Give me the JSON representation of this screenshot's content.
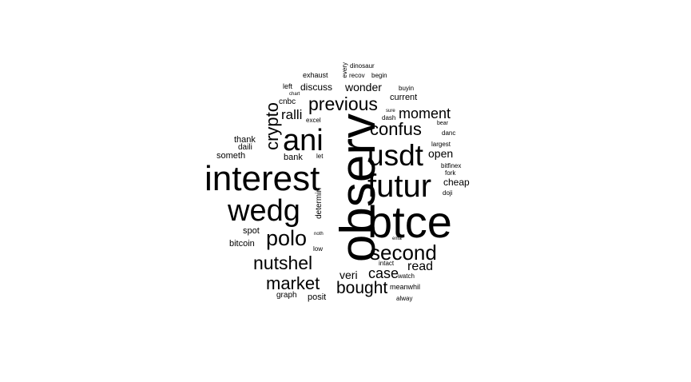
{
  "cloud": {
    "text_color": "#000000",
    "background": "#ffffff",
    "words": [
      {
        "id": "observ",
        "text": "observ"
      },
      {
        "id": "btce",
        "text": "btce"
      },
      {
        "id": "interest",
        "text": "interest"
      },
      {
        "id": "futur",
        "text": "futur"
      },
      {
        "id": "wedg",
        "text": "wedg"
      },
      {
        "id": "ani",
        "text": "ani"
      },
      {
        "id": "usdt",
        "text": "usdt"
      },
      {
        "id": "polo",
        "text": "polo"
      },
      {
        "id": "second",
        "text": "second"
      },
      {
        "id": "nutshel",
        "text": "nutshel"
      },
      {
        "id": "previous",
        "text": "previous"
      },
      {
        "id": "market",
        "text": "market"
      },
      {
        "id": "crypto",
        "text": "crypto"
      },
      {
        "id": "confus",
        "text": "confus"
      },
      {
        "id": "bought",
        "text": "bought"
      },
      {
        "id": "moment",
        "text": "moment"
      },
      {
        "id": "case",
        "text": "case"
      },
      {
        "id": "ralli",
        "text": "ralli"
      },
      {
        "id": "read",
        "text": "read"
      },
      {
        "id": "open",
        "text": "open"
      },
      {
        "id": "veri",
        "text": "veri"
      },
      {
        "id": "wonder",
        "text": "wonder"
      },
      {
        "id": "discuss",
        "text": "discuss"
      },
      {
        "id": "cheap",
        "text": "cheap"
      },
      {
        "id": "spot",
        "text": "spot"
      },
      {
        "id": "current",
        "text": "current"
      },
      {
        "id": "thank",
        "text": "thank"
      },
      {
        "id": "cnbc",
        "text": "cnbc"
      },
      {
        "id": "bitcoin",
        "text": "bitcoin"
      },
      {
        "id": "someth",
        "text": "someth"
      },
      {
        "id": "bank",
        "text": "bank"
      },
      {
        "id": "daili",
        "text": "daili"
      },
      {
        "id": "posit",
        "text": "posit"
      },
      {
        "id": "determin",
        "text": "determin"
      },
      {
        "id": "graph",
        "text": "graph"
      },
      {
        "id": "exhaust",
        "text": "exhaust"
      },
      {
        "id": "left",
        "text": "left"
      },
      {
        "id": "meanwhil",
        "text": "meanwhil"
      },
      {
        "id": "largest",
        "text": "largest"
      },
      {
        "id": "intact",
        "text": "intact"
      },
      {
        "id": "watch",
        "text": "watch"
      },
      {
        "id": "alway",
        "text": "alway"
      },
      {
        "id": "dash",
        "text": "dash"
      },
      {
        "id": "bitfinex",
        "text": "bitfinex"
      },
      {
        "id": "fork",
        "text": "fork"
      },
      {
        "id": "doji",
        "text": "doji"
      },
      {
        "id": "buyin",
        "text": "buyin"
      },
      {
        "id": "danc",
        "text": "danc"
      },
      {
        "id": "bear",
        "text": "bear"
      },
      {
        "id": "dinosaur",
        "text": "dinosaur"
      },
      {
        "id": "recov",
        "text": "recov"
      },
      {
        "id": "begin",
        "text": "begin"
      },
      {
        "id": "every",
        "text": "every"
      },
      {
        "id": "excel",
        "text": "excel"
      },
      {
        "id": "let",
        "text": "let"
      },
      {
        "id": "low",
        "text": "low"
      },
      {
        "id": "chart",
        "text": "chart"
      },
      {
        "id": "sure",
        "text": "sure"
      },
      {
        "id": "ema",
        "text": "ema"
      },
      {
        "id": "noth",
        "text": "noth"
      }
    ]
  }
}
